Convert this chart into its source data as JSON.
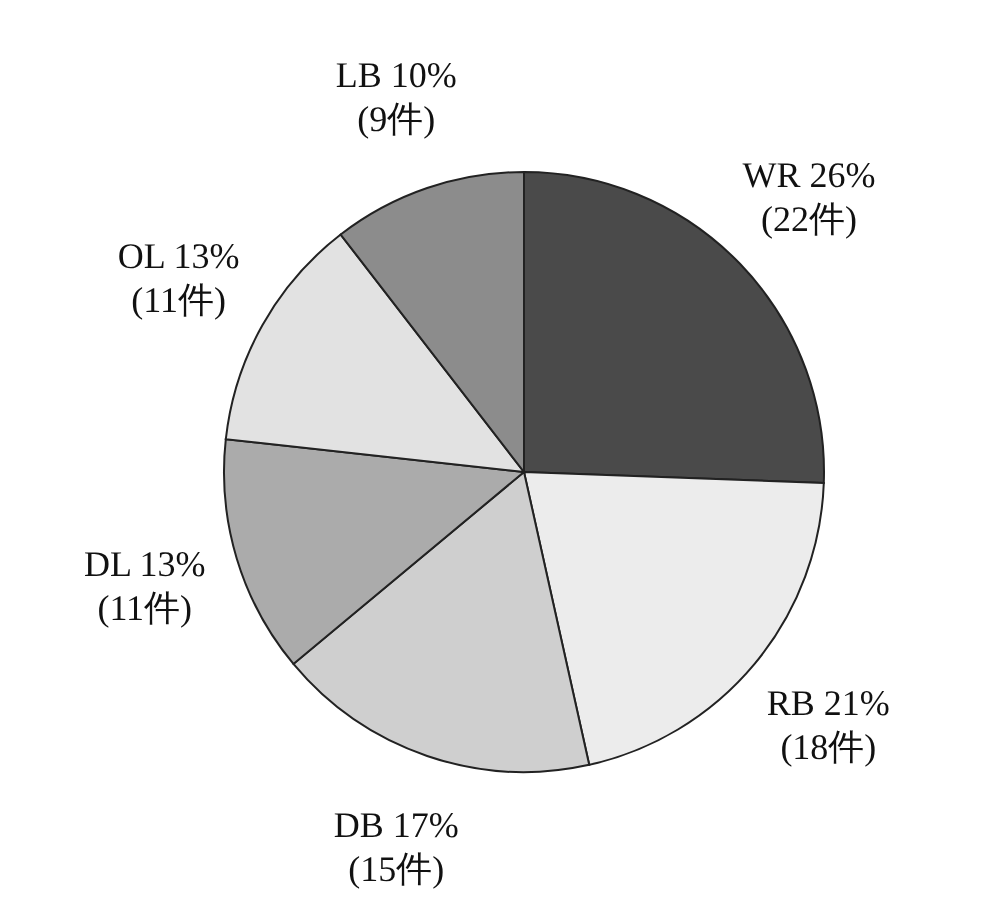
{
  "chart_data": {
    "type": "pie",
    "categories": [
      "WR",
      "RB",
      "DB",
      "DL",
      "OL",
      "LB"
    ],
    "values": [
      22,
      18,
      15,
      11,
      11,
      9
    ],
    "value_labels": [
      "26%\n(22件)",
      "21%\n(18件)",
      "17%\n(15件)",
      "13%\n(11件)",
      "13%\n(11件)",
      "10%\n(9件)"
    ],
    "colors": [
      "#4a4a4a",
      "#ececec",
      "#cfcfcf",
      "#ababab",
      "#e2e2e2",
      "#8c8c8c"
    ]
  }
}
